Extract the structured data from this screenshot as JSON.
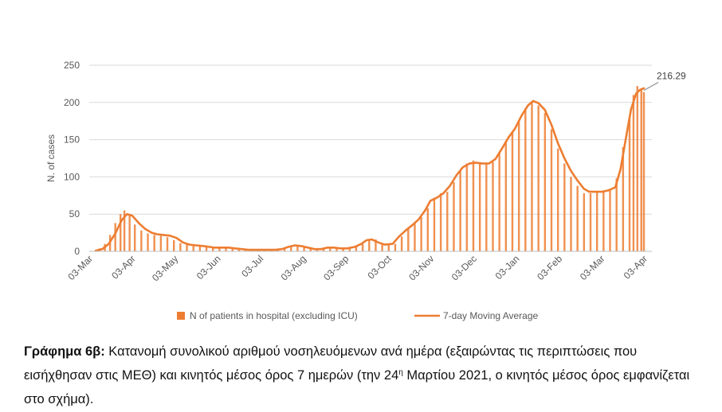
{
  "chart_data": {
    "type": "bar+line",
    "ylabel": "N. of cases",
    "xlabel": "",
    "ylim": [
      0,
      250
    ],
    "yticks": [
      0,
      50,
      100,
      150,
      200,
      250
    ],
    "xticks": [
      "03-Mar",
      "03-Apr",
      "03-May",
      "03-Jun",
      "03-Jul",
      "03-Aug",
      "03-Sep",
      "03-Oct",
      "03-Nov",
      "03-Dec",
      "03-Jan",
      "03-Feb",
      "03-Mar",
      "03-Apr"
    ],
    "grid": "horizontal",
    "legend_position": "bottom",
    "annotation": {
      "text": "216.29",
      "x": "24-Mar",
      "y": 216.29
    },
    "bar_series": {
      "name": "N of patients in hospital (excluding ICU)",
      "color": "#ED7D31",
      "points": [
        [
          5,
          2
        ],
        [
          8,
          4
        ],
        [
          12,
          10
        ],
        [
          16,
          22
        ],
        [
          20,
          38
        ],
        [
          24,
          50
        ],
        [
          27,
          55
        ],
        [
          31,
          48
        ],
        [
          35,
          36
        ],
        [
          40,
          28
        ],
        [
          45,
          24
        ],
        [
          50,
          22
        ],
        [
          55,
          21
        ],
        [
          60,
          19
        ],
        [
          65,
          15
        ],
        [
          70,
          11
        ],
        [
          75,
          9
        ],
        [
          80,
          8
        ],
        [
          85,
          7
        ],
        [
          90,
          6
        ],
        [
          95,
          5
        ],
        [
          100,
          5
        ],
        [
          105,
          5
        ],
        [
          110,
          4
        ],
        [
          115,
          3
        ],
        [
          120,
          2
        ],
        [
          125,
          2
        ],
        [
          130,
          2
        ],
        [
          135,
          2
        ],
        [
          140,
          2
        ],
        [
          145,
          3
        ],
        [
          150,
          5
        ],
        [
          155,
          8
        ],
        [
          160,
          8
        ],
        [
          165,
          6
        ],
        [
          170,
          4
        ],
        [
          175,
          3
        ],
        [
          180,
          4
        ],
        [
          185,
          6
        ],
        [
          190,
          5
        ],
        [
          195,
          4
        ],
        [
          200,
          4
        ],
        [
          205,
          6
        ],
        [
          210,
          10
        ],
        [
          215,
          16
        ],
        [
          220,
          16
        ],
        [
          225,
          11
        ],
        [
          230,
          9
        ],
        [
          235,
          10
        ],
        [
          240,
          20
        ],
        [
          245,
          30
        ],
        [
          250,
          38
        ],
        [
          255,
          46
        ],
        [
          260,
          58
        ],
        [
          265,
          72
        ],
        [
          270,
          78
        ],
        [
          275,
          80
        ],
        [
          280,
          93
        ],
        [
          285,
          108
        ],
        [
          290,
          118
        ],
        [
          295,
          122
        ],
        [
          300,
          119
        ],
        [
          305,
          117
        ],
        [
          310,
          120
        ],
        [
          315,
          132
        ],
        [
          320,
          148
        ],
        [
          325,
          160
        ],
        [
          330,
          175
        ],
        [
          335,
          192
        ],
        [
          340,
          200
        ],
        [
          345,
          196
        ],
        [
          350,
          186
        ],
        [
          355,
          164
        ],
        [
          360,
          138
        ],
        [
          365,
          118
        ],
        [
          370,
          100
        ],
        [
          375,
          88
        ],
        [
          380,
          78
        ],
        [
          385,
          78
        ],
        [
          390,
          80
        ],
        [
          395,
          82
        ],
        [
          400,
          84
        ],
        [
          405,
          98
        ],
        [
          410,
          140
        ],
        [
          415,
          180
        ],
        [
          418,
          210
        ],
        [
          421,
          222
        ],
        [
          424,
          218
        ],
        [
          426,
          214
        ]
      ]
    },
    "line_series": {
      "name": "7-day Moving Average",
      "color": "#ED7D31",
      "points": [
        [
          5,
          1
        ],
        [
          10,
          3
        ],
        [
          15,
          10
        ],
        [
          20,
          24
        ],
        [
          25,
          42
        ],
        [
          29,
          50
        ],
        [
          33,
          48
        ],
        [
          38,
          38
        ],
        [
          43,
          30
        ],
        [
          48,
          25
        ],
        [
          52,
          23
        ],
        [
          57,
          22
        ],
        [
          62,
          21
        ],
        [
          67,
          18
        ],
        [
          72,
          12
        ],
        [
          77,
          9
        ],
        [
          82,
          8
        ],
        [
          88,
          7
        ],
        [
          92,
          6
        ],
        [
          96,
          5
        ],
        [
          102,
          5
        ],
        [
          107,
          5
        ],
        [
          112,
          4
        ],
        [
          117,
          3
        ],
        [
          122,
          2
        ],
        [
          128,
          2
        ],
        [
          133,
          2
        ],
        [
          138,
          2
        ],
        [
          143,
          2
        ],
        [
          148,
          3
        ],
        [
          153,
          6
        ],
        [
          158,
          8
        ],
        [
          163,
          7
        ],
        [
          168,
          5
        ],
        [
          173,
          3
        ],
        [
          178,
          3
        ],
        [
          183,
          5
        ],
        [
          188,
          5
        ],
        [
          193,
          4
        ],
        [
          198,
          4
        ],
        [
          204,
          6
        ],
        [
          209,
          10
        ],
        [
          213,
          15
        ],
        [
          217,
          16
        ],
        [
          222,
          12
        ],
        [
          227,
          9
        ],
        [
          233,
          10
        ],
        [
          238,
          20
        ],
        [
          243,
          28
        ],
        [
          248,
          35
        ],
        [
          253,
          43
        ],
        [
          258,
          55
        ],
        [
          262,
          68
        ],
        [
          267,
          72
        ],
        [
          272,
          78
        ],
        [
          277,
          88
        ],
        [
          282,
          102
        ],
        [
          287,
          113
        ],
        [
          292,
          118
        ],
        [
          297,
          119
        ],
        [
          302,
          118
        ],
        [
          307,
          118
        ],
        [
          312,
          124
        ],
        [
          317,
          138
        ],
        [
          322,
          153
        ],
        [
          327,
          165
        ],
        [
          332,
          182
        ],
        [
          337,
          196
        ],
        [
          341,
          202
        ],
        [
          345,
          199
        ],
        [
          350,
          190
        ],
        [
          355,
          170
        ],
        [
          360,
          145
        ],
        [
          365,
          125
        ],
        [
          370,
          108
        ],
        [
          375,
          95
        ],
        [
          380,
          84
        ],
        [
          384,
          80
        ],
        [
          389,
          80
        ],
        [
          394,
          80
        ],
        [
          399,
          82
        ],
        [
          404,
          86
        ],
        [
          408,
          110
        ],
        [
          412,
          150
        ],
        [
          416,
          190
        ],
        [
          420,
          212
        ],
        [
          423,
          217
        ],
        [
          426,
          219
        ]
      ]
    }
  },
  "caption": {
    "label": "Γράφημα 6β:",
    "text_part1": " Κατανομή συνολικού αριθμού νοσηλευόμενων ανά ημέρα (εξαιρώντας τις περιπτώσεις που εισήχθησαν στις ΜΕΘ) και κινητός μέσος όρος 7 ημερών (την 24",
    "sup": "η",
    "text_part2": " Μαρτίου 2021, ο κινητός μέσος όρος εμφανίζεται στο σχήμα)."
  }
}
